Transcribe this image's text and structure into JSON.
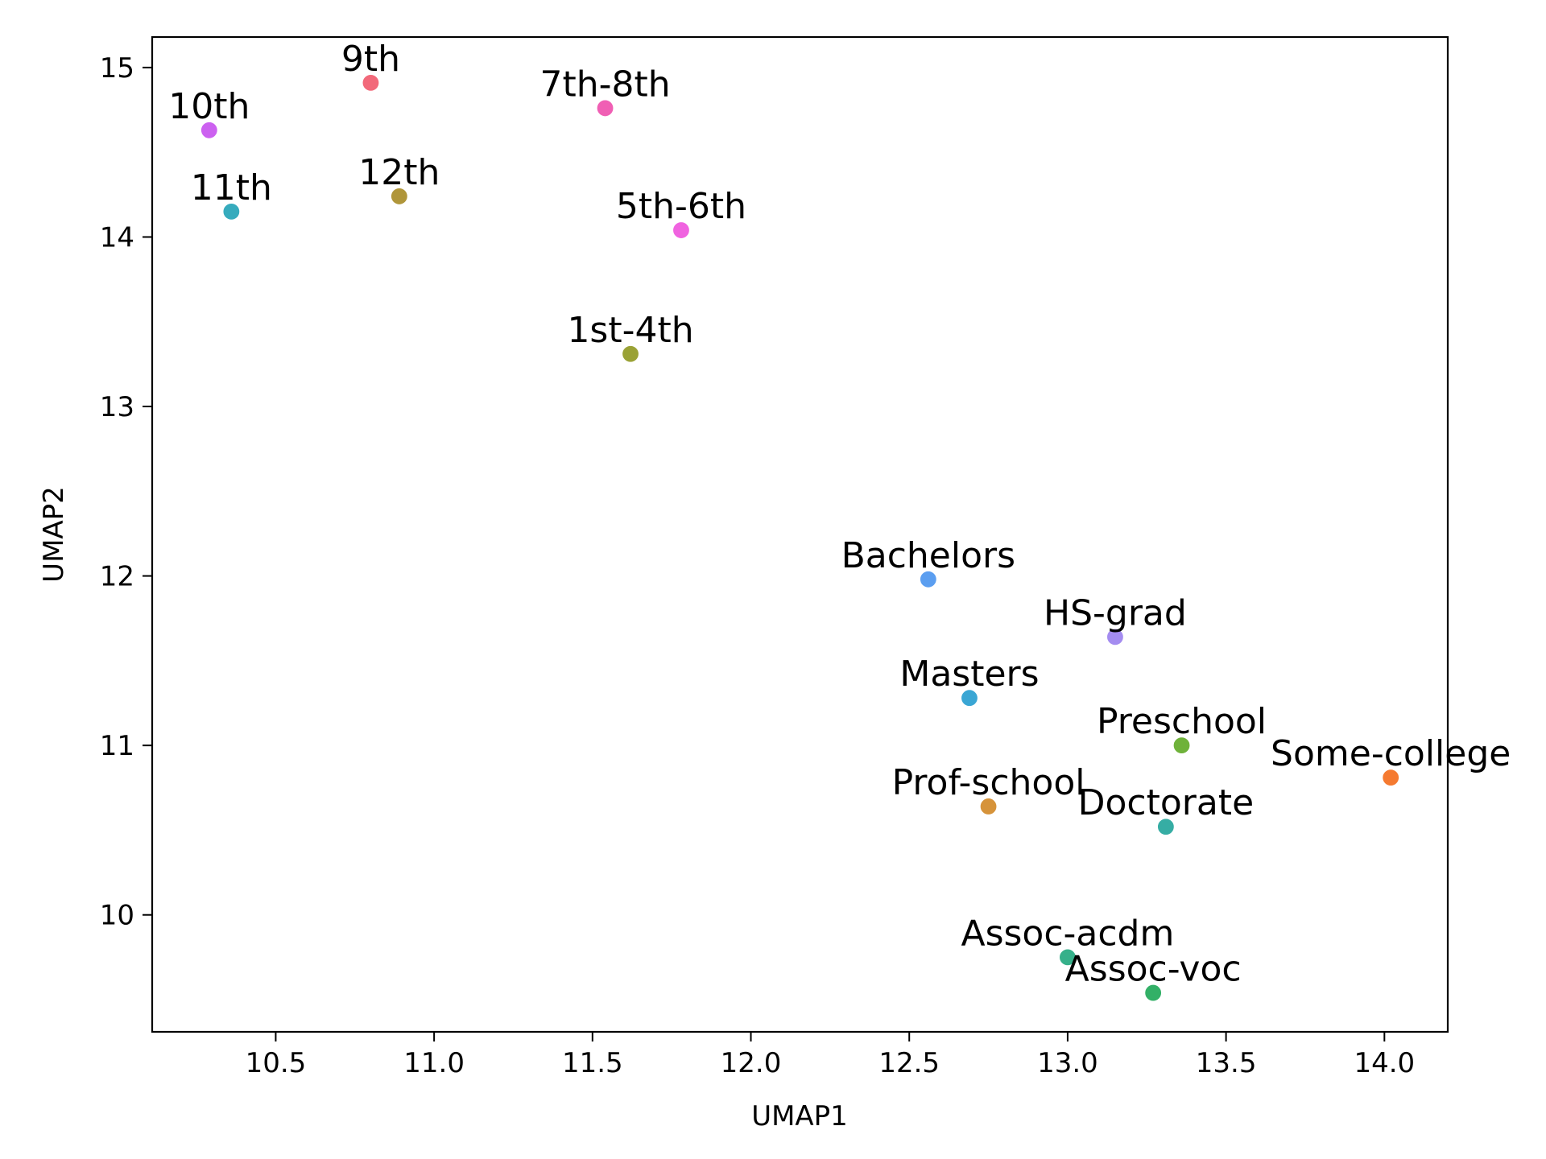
{
  "chart_data": {
    "type": "scatter",
    "xlabel": "UMAP1",
    "ylabel": "UMAP2",
    "xlim": [
      10.11,
      14.2
    ],
    "ylim": [
      9.31,
      15.18
    ],
    "xticks": [
      10.5,
      11.0,
      11.5,
      12.0,
      12.5,
      13.0,
      13.5,
      14.0
    ],
    "yticks": [
      10,
      11,
      12,
      13,
      14,
      15
    ],
    "xtick_labels": [
      "10.5",
      "11.0",
      "11.5",
      "12.0",
      "12.5",
      "13.0",
      "13.5",
      "14.0"
    ],
    "ytick_labels": [
      "10",
      "11",
      "12",
      "13",
      "14",
      "15"
    ],
    "grid": false,
    "legend": false,
    "points": [
      {
        "label": "10th",
        "x": 10.29,
        "y": 14.63,
        "color": "#cc61f0"
      },
      {
        "label": "9th",
        "x": 10.8,
        "y": 14.91,
        "color": "#f2697a"
      },
      {
        "label": "11th",
        "x": 10.36,
        "y": 14.15,
        "color": "#36abbd"
      },
      {
        "label": "12th",
        "x": 10.89,
        "y": 14.24,
        "color": "#b0963a"
      },
      {
        "label": "7th-8th",
        "x": 11.54,
        "y": 14.76,
        "color": "#f05fb4"
      },
      {
        "label": "5th-6th",
        "x": 11.78,
        "y": 14.04,
        "color": "#f063e0"
      },
      {
        "label": "1st-4th",
        "x": 11.62,
        "y": 13.31,
        "color": "#9aa236"
      },
      {
        "label": "Bachelors",
        "x": 12.56,
        "y": 11.98,
        "color": "#5b9ef0"
      },
      {
        "label": "HS-grad",
        "x": 13.15,
        "y": 11.64,
        "color": "#a48cf0"
      },
      {
        "label": "Masters",
        "x": 12.69,
        "y": 11.28,
        "color": "#3aa6d4"
      },
      {
        "label": "Preschool",
        "x": 13.36,
        "y": 11.0,
        "color": "#6fb23a"
      },
      {
        "label": "Some-college",
        "x": 14.02,
        "y": 10.81,
        "color": "#f57a30"
      },
      {
        "label": "Prof-school",
        "x": 12.75,
        "y": 10.64,
        "color": "#d6933a"
      },
      {
        "label": "Doctorate",
        "x": 13.31,
        "y": 10.52,
        "color": "#36ada4"
      },
      {
        "label": "Assoc-acdm",
        "x": 13.0,
        "y": 9.75,
        "color": "#36b08a"
      },
      {
        "label": "Assoc-voc",
        "x": 13.27,
        "y": 9.54,
        "color": "#33b067"
      }
    ]
  }
}
